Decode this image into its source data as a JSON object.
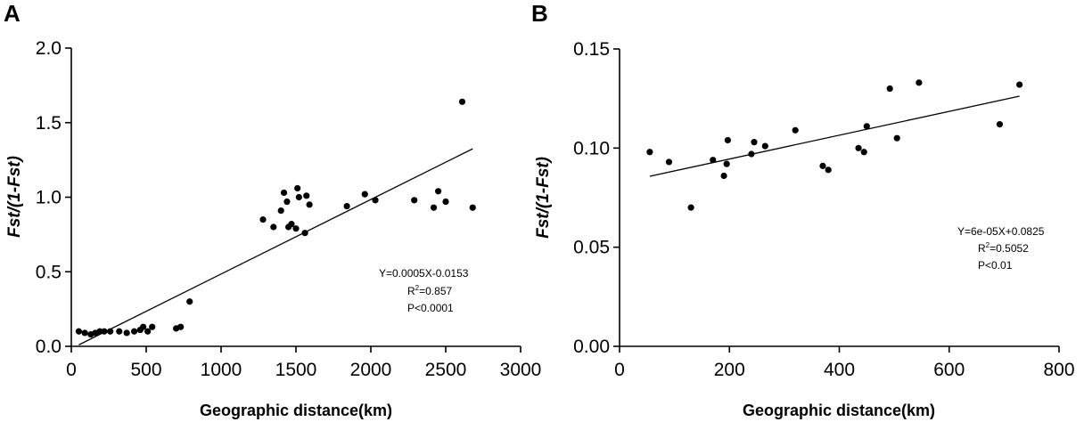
{
  "chart_data": [
    {
      "panel": "A",
      "type": "scatter",
      "xlabel": "Geographic distance(km)",
      "ylabel": "Fst/(1-Fst)",
      "xlim": [
        0,
        3000
      ],
      "ylim": [
        0,
        2.0
      ],
      "xticks": [
        0,
        500,
        1000,
        1500,
        2000,
        2500,
        3000
      ],
      "xtick_labels": [
        "0",
        "500",
        "1000",
        "1500",
        "2000",
        "2500",
        "3000"
      ],
      "yticks": [
        0,
        0.5,
        1.0,
        1.5,
        2.0
      ],
      "ytick_labels": [
        "0.0",
        "0.5",
        "1.0",
        "1.5",
        "2.0"
      ],
      "points": [
        [
          50,
          0.1
        ],
        [
          90,
          0.09
        ],
        [
          130,
          0.08
        ],
        [
          160,
          0.09
        ],
        [
          190,
          0.1
        ],
        [
          220,
          0.1
        ],
        [
          260,
          0.1
        ],
        [
          320,
          0.1
        ],
        [
          370,
          0.09
        ],
        [
          420,
          0.1
        ],
        [
          460,
          0.11
        ],
        [
          480,
          0.13
        ],
        [
          510,
          0.1
        ],
        [
          540,
          0.13
        ],
        [
          700,
          0.12
        ],
        [
          730,
          0.13
        ],
        [
          790,
          0.3
        ],
        [
          1280,
          0.85
        ],
        [
          1350,
          0.8
        ],
        [
          1400,
          0.91
        ],
        [
          1420,
          1.03
        ],
        [
          1440,
          0.97
        ],
        [
          1450,
          0.8
        ],
        [
          1470,
          0.82
        ],
        [
          1500,
          0.79
        ],
        [
          1510,
          1.06
        ],
        [
          1520,
          1.0
        ],
        [
          1560,
          0.76
        ],
        [
          1570,
          1.01
        ],
        [
          1590,
          0.95
        ],
        [
          1840,
          0.94
        ],
        [
          1960,
          1.02
        ],
        [
          2030,
          0.98
        ],
        [
          2290,
          0.98
        ],
        [
          2420,
          0.93
        ],
        [
          2450,
          1.04
        ],
        [
          2500,
          0.97
        ],
        [
          2610,
          1.64
        ],
        [
          2680,
          0.93
        ]
      ],
      "fit_line": {
        "slope": 0.0005,
        "intercept": -0.0153,
        "x_range": [
          50,
          2680
        ]
      },
      "annotation": {
        "equation": "Y=0.0005X-0.0153",
        "r2_label": "R",
        "r2_sup": "2",
        "r2_value": "=0.857",
        "p_value": "P<0.0001"
      }
    },
    {
      "panel": "B",
      "type": "scatter",
      "xlabel": "Geographic distance(km)",
      "ylabel": "Fst/(1-Fst)",
      "xlim": [
        0,
        800
      ],
      "ylim": [
        0,
        0.15
      ],
      "xticks": [
        0,
        200,
        400,
        600,
        800
      ],
      "xtick_labels": [
        "0",
        "200",
        "400",
        "600",
        "800"
      ],
      "yticks": [
        0,
        0.05,
        0.1,
        0.15
      ],
      "ytick_labels": [
        "0.00",
        "0.05",
        "0.10",
        "0.15"
      ],
      "points": [
        [
          55,
          0.098
        ],
        [
          90,
          0.093
        ],
        [
          130,
          0.07
        ],
        [
          170,
          0.094
        ],
        [
          190,
          0.086
        ],
        [
          195,
          0.092
        ],
        [
          197,
          0.104
        ],
        [
          240,
          0.097
        ],
        [
          245,
          0.103
        ],
        [
          265,
          0.101
        ],
        [
          320,
          0.109
        ],
        [
          370,
          0.091
        ],
        [
          380,
          0.089
        ],
        [
          435,
          0.1
        ],
        [
          445,
          0.098
        ],
        [
          450,
          0.111
        ],
        [
          492,
          0.13
        ],
        [
          505,
          0.105
        ],
        [
          545,
          0.133
        ],
        [
          692,
          0.112
        ],
        [
          728,
          0.132
        ]
      ],
      "fit_line": {
        "slope": 6e-05,
        "intercept": 0.0825,
        "x_range": [
          55,
          728
        ]
      },
      "annotation": {
        "equation": "Y=6e-05X+0.0825",
        "r2_label": "R",
        "r2_sup": "2",
        "r2_value": "=0.5052",
        "p_value": "P<0.01"
      }
    }
  ]
}
